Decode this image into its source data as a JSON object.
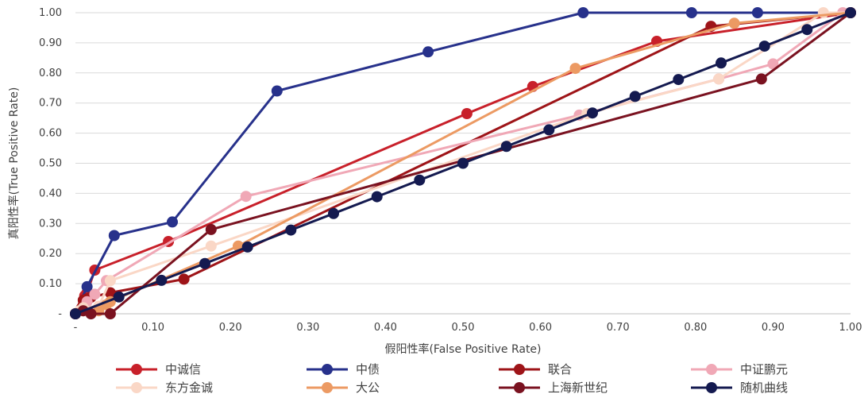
{
  "chart_data": {
    "type": "line",
    "xlabel": "假阳性率(False Positive Rate)",
    "ylabel": "真阳性率(True Positive Rate)",
    "xlim": [
      0,
      1
    ],
    "ylim": [
      0,
      1
    ],
    "grid": "horizontal",
    "legend_position": "bottom",
    "x_ticks": [
      "-",
      "0.10",
      "0.20",
      "0.30",
      "0.40",
      "0.50",
      "0.60",
      "0.70",
      "0.80",
      "0.90",
      "1.00"
    ],
    "y_ticks": [
      "-",
      "0.10",
      "0.20",
      "0.30",
      "0.40",
      "0.50",
      "0.60",
      "0.70",
      "0.80",
      "0.90",
      "1.00"
    ],
    "series": [
      {
        "name": "中诚信",
        "color": "#c8202a",
        "points": [
          [
            0,
            0
          ],
          [
            0.01,
            0.03
          ],
          [
            0.012,
            0.06
          ],
          [
            0.015,
            0.07
          ],
          [
            0.025,
            0.145
          ],
          [
            0.12,
            0.24
          ],
          [
            0.505,
            0.665
          ],
          [
            0.59,
            0.755
          ],
          [
            0.75,
            0.905
          ],
          [
            1,
            1
          ]
        ]
      },
      {
        "name": "中债",
        "color": "#27318b",
        "points": [
          [
            0,
            0
          ],
          [
            0.015,
            0.09
          ],
          [
            0.05,
            0.26
          ],
          [
            0.125,
            0.305
          ],
          [
            0.26,
            0.74
          ],
          [
            0.455,
            0.87
          ],
          [
            0.655,
            1
          ],
          [
            0.795,
            1
          ],
          [
            0.88,
            1
          ],
          [
            1,
            1
          ]
        ]
      },
      {
        "name": "联合",
        "color": "#9e1418",
        "points": [
          [
            0,
            0
          ],
          [
            0.008,
            0.02
          ],
          [
            0.01,
            0.045
          ],
          [
            0.015,
            0.05
          ],
          [
            0.02,
            0.055
          ],
          [
            0.045,
            0.07
          ],
          [
            0.14,
            0.115
          ],
          [
            0.82,
            0.955
          ],
          [
            1,
            1
          ]
        ]
      },
      {
        "name": "中证鹏元",
        "color": "#f0a8b6",
        "points": [
          [
            0,
            0
          ],
          [
            0.015,
            0.04
          ],
          [
            0.025,
            0.065
          ],
          [
            0.04,
            0.11
          ],
          [
            0.22,
            0.39
          ],
          [
            0.65,
            0.66
          ],
          [
            0.83,
            0.78
          ],
          [
            0.9,
            0.83
          ],
          [
            0.99,
            1
          ],
          [
            1,
            1
          ]
        ]
      },
      {
        "name": "东方金诚",
        "color": "#fad7c6",
        "points": [
          [
            0,
            0
          ],
          [
            0.005,
            0.01
          ],
          [
            0.01,
            0.02
          ],
          [
            0.03,
            0.025
          ],
          [
            0.045,
            0.11
          ],
          [
            0.175,
            0.225
          ],
          [
            0.66,
            0.665
          ],
          [
            0.83,
            0.78
          ],
          [
            0.965,
            1
          ],
          [
            1,
            1
          ]
        ]
      },
      {
        "name": "大公",
        "color": "#ec9a63",
        "points": [
          [
            0,
            0
          ],
          [
            0.01,
            0.01
          ],
          [
            0.03,
            0.01
          ],
          [
            0.04,
            0.03
          ],
          [
            0.045,
            0.04
          ],
          [
            0.21,
            0.225
          ],
          [
            0.645,
            0.815
          ],
          [
            0.85,
            0.965
          ],
          [
            1,
            1
          ]
        ]
      },
      {
        "name": "上海新世纪",
        "color": "#7a1220",
        "points": [
          [
            0,
            0
          ],
          [
            0.01,
            0.01
          ],
          [
            0.02,
            0
          ],
          [
            0.045,
            0
          ],
          [
            0.175,
            0.28
          ],
          [
            0.885,
            0.78
          ],
          [
            1,
            1
          ]
        ]
      },
      {
        "name": "随机曲线",
        "color": "#141a50",
        "points": [
          [
            0,
            0
          ],
          [
            0.056,
            0.056
          ],
          [
            0.111,
            0.111
          ],
          [
            0.167,
            0.167
          ],
          [
            0.222,
            0.222
          ],
          [
            0.278,
            0.278
          ],
          [
            0.333,
            0.333
          ],
          [
            0.389,
            0.389
          ],
          [
            0.444,
            0.444
          ],
          [
            0.5,
            0.5
          ],
          [
            0.556,
            0.556
          ],
          [
            0.611,
            0.611
          ],
          [
            0.667,
            0.667
          ],
          [
            0.722,
            0.722
          ],
          [
            0.778,
            0.778
          ],
          [
            0.833,
            0.833
          ],
          [
            0.889,
            0.889
          ],
          [
            0.944,
            0.944
          ],
          [
            1,
            1
          ]
        ]
      }
    ]
  }
}
